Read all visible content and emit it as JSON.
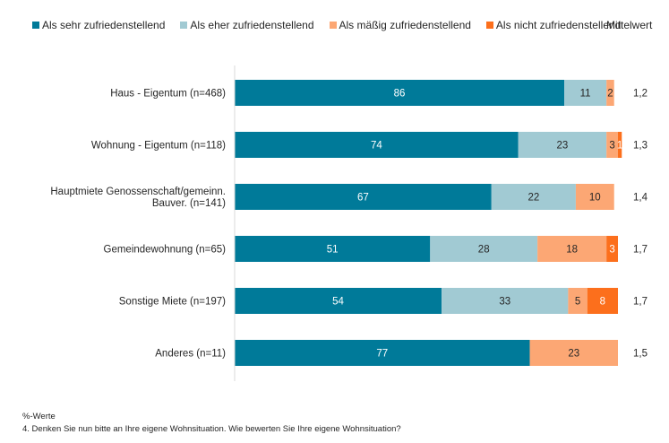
{
  "chart_data": {
    "type": "bar",
    "orientation": "horizontal",
    "stacked": true,
    "title": "",
    "xlabel": "",
    "ylabel": "",
    "xlim": [
      0,
      100
    ],
    "grid": false,
    "legend_position": "top",
    "categories": [
      [
        "Haus - Eigentum (n=468)"
      ],
      [
        "Wohnung - Eigentum (n=118)"
      ],
      [
        "Hauptmiete Genossenschaft/gemeinn.",
        "Bauver. (n=141)"
      ],
      [
        "Gemeindewohnung (n=65)"
      ],
      [
        "Sonstige Miete (n=197)"
      ],
      [
        "Anderes (n=11)"
      ]
    ],
    "series": [
      {
        "name": "Als sehr zufriedenstellend",
        "color": "#007a99",
        "label_color": "#ffffff",
        "values": [
          86,
          74,
          67,
          51,
          54,
          77
        ]
      },
      {
        "name": "Als eher zufriedenstellend",
        "color": "#a1cad3",
        "label_color": "#262626",
        "values": [
          11,
          23,
          22,
          28,
          33,
          0
        ]
      },
      {
        "name": "Als mäßig zufriedenstellend",
        "color": "#fca774",
        "label_color": "#262626",
        "values": [
          2,
          3,
          10,
          18,
          5,
          23
        ]
      },
      {
        "name": "Als nicht zufriedenstellend",
        "color": "#fc6f1c",
        "label_color": "#ffffff",
        "values": [
          0,
          1,
          0,
          3,
          8,
          0
        ]
      }
    ],
    "mean_header": "Mittelwert",
    "mean_values": [
      "1,2",
      "1,3",
      "1,4",
      "1,7",
      "1,7",
      "1,5"
    ]
  },
  "footer": {
    "unit_note": "%-Werte",
    "question": "4. Denken Sie nun bitte an Ihre eigene Wohnsituation. Wie bewerten Sie Ihre eigene Wohnsituation?"
  }
}
